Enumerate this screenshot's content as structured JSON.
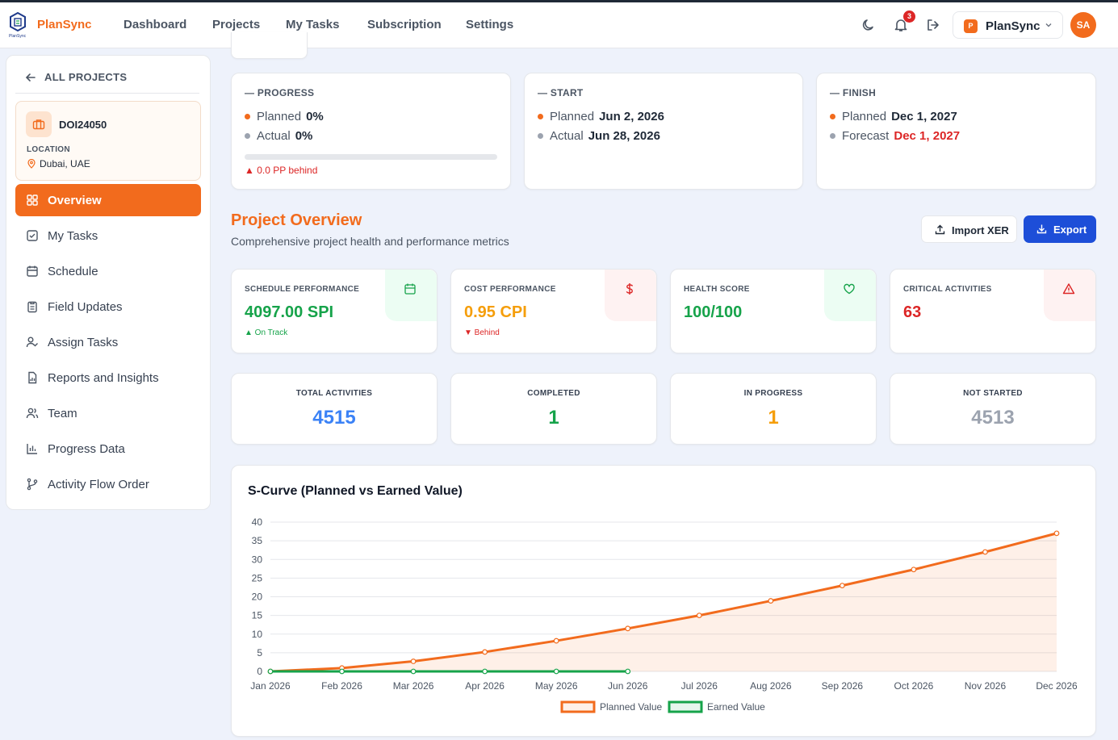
{
  "app": {
    "brand": "PlanSync",
    "logo_text": "PlanSync",
    "notifications": "3",
    "workspace": "PlanSync",
    "workspace_initial": "P",
    "user_initials": "SA"
  },
  "nav": [
    "Dashboard",
    "Projects",
    "My Tasks",
    "Subscription",
    "Settings"
  ],
  "sidebar": {
    "back": "ALL PROJECTS",
    "project": {
      "code": "DOI24050",
      "location_label": "LOCATION",
      "location": "Dubai, UAE"
    },
    "items": [
      "Overview",
      "My Tasks",
      "Schedule",
      "Field Updates",
      "Assign Tasks",
      "Reports and Insights",
      "Team",
      "Progress Data",
      "Activity Flow Order"
    ],
    "active": "Overview"
  },
  "progress": {
    "title": "— PROGRESS",
    "planned_label": "Planned",
    "planned": "0%",
    "actual_label": "Actual",
    "actual": "0%",
    "fill": 0,
    "behind": "▲ 0.0 PP behind"
  },
  "start": {
    "title": "— START",
    "planned_label": "Planned",
    "planned": "Jun 2, 2026",
    "actual_label": "Actual",
    "actual": "Jun 28, 2026"
  },
  "finish": {
    "title": "— FINISH",
    "planned_label": "Planned",
    "planned": "Dec 1, 2027",
    "forecast_label": "Forecast",
    "forecast": "Dec 1, 2027"
  },
  "overview": {
    "title": "Project Overview",
    "subtitle": "Comprehensive project health and performance metrics",
    "import_label": "Import XER",
    "export_label": "Export"
  },
  "metrics": [
    {
      "label": "SCHEDULE PERFORMANCE",
      "value": "4097.00 SPI",
      "note": "▲ On Track",
      "color": "#16a34a",
      "icon": "calendar-icon"
    },
    {
      "label": "COST PERFORMANCE",
      "value": "0.95 CPI",
      "note": "▼ Behind",
      "color": "#f59e0b",
      "note_color": "#dc2626",
      "icon": "dollar-icon"
    },
    {
      "label": "HEALTH SCORE",
      "value": "100/100",
      "note": "",
      "color": "#16a34a",
      "icon": "heart-icon"
    },
    {
      "label": "CRITICAL ACTIVITIES",
      "value": "63",
      "note": "",
      "color": "#dc2626",
      "icon": "warning-icon"
    }
  ],
  "stats": [
    {
      "label": "TOTAL ACTIVITIES",
      "value": "4515",
      "color": "#3b82f6"
    },
    {
      "label": "COMPLETED",
      "value": "1",
      "color": "#16a34a"
    },
    {
      "label": "IN PROGRESS",
      "value": "1",
      "color": "#f59e0b"
    },
    {
      "label": "NOT STARTED",
      "value": "4513",
      "color": "#9ca3af"
    }
  ],
  "chart_data": {
    "type": "line",
    "title": "S-Curve (Planned vs Earned Value)",
    "categories": [
      "Jan 2026",
      "Feb 2026",
      "Mar 2026",
      "Apr 2026",
      "May 2026",
      "Jun 2026",
      "Jul 2026",
      "Aug 2026",
      "Sep 2026",
      "Oct 2026",
      "Nov 2026",
      "Dec 2026"
    ],
    "series": [
      {
        "name": "Planned Value",
        "color": "#f26b1d",
        "fill": true,
        "values": [
          0,
          0.9,
          2.7,
          5.2,
          8.2,
          11.5,
          15.0,
          18.9,
          23.0,
          27.3,
          32.0,
          37.0
        ]
      },
      {
        "name": "Earned Value",
        "color": "#16a34a",
        "fill": false,
        "values": [
          0,
          0,
          0,
          0,
          0,
          0,
          null,
          null,
          null,
          null,
          null,
          null
        ]
      }
    ],
    "ylim": [
      0,
      40
    ],
    "yticks": [
      0,
      5,
      10,
      15,
      20,
      25,
      30,
      35,
      40
    ],
    "grid": true,
    "legend": "bottom"
  }
}
